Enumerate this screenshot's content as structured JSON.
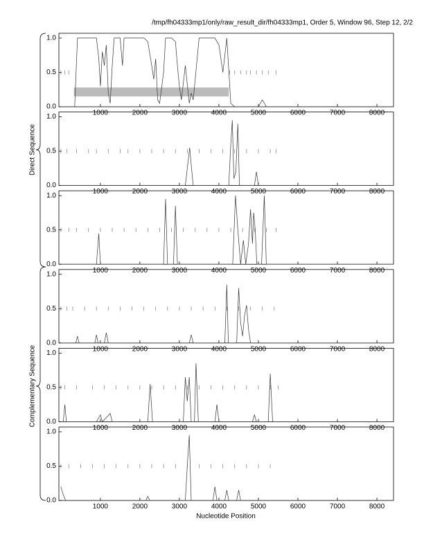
{
  "title": "/tmp/fh04333mp1/only/raw_result_dir/fh04333mp1, Order 5, Window 96, Step 12, 2/2",
  "x_label": "Nucleotide Position",
  "groups": [
    "Direct Sequence",
    "Complementary Sequence"
  ],
  "chart_data": [
    {
      "type": "line",
      "color": "#333333",
      "xlim": [
        -50,
        8420
      ],
      "ylim": [
        0,
        1.07
      ],
      "xticks": [
        1000,
        2000,
        3000,
        4000,
        5000,
        6000,
        7000,
        8000
      ],
      "yticks": [
        {
          "value": 0,
          "label": "0.0"
        },
        0.5,
        {
          "value": 1,
          "label": "1.0"
        }
      ],
      "regions": [
        {
          "start": 330,
          "end": 4250
        }
      ],
      "stops": [
        0,
        100,
        200,
        4270,
        4400,
        4550,
        4700,
        4800,
        4950,
        5100,
        5250,
        5450
      ],
      "x": [
        0,
        350,
        420,
        500,
        900,
        960,
        1000,
        1050,
        1100,
        1150,
        1200,
        1250,
        1300,
        1350,
        1500,
        1560,
        1600,
        1650,
        2100,
        2200,
        2300,
        2350,
        2400,
        2450,
        2500,
        2600,
        2650,
        2700,
        2800,
        2900,
        2950,
        3000,
        3050,
        3150,
        3250,
        3300,
        3350,
        3500,
        3600,
        3700,
        3900,
        4000,
        4100,
        4200,
        4300,
        4400,
        5000,
        5100,
        5200,
        8420
      ],
      "values": [
        0,
        0,
        1,
        1,
        1,
        0.7,
        0.3,
        0.8,
        0.6,
        0.9,
        0.2,
        0.05,
        0.6,
        1,
        1,
        0.6,
        1,
        1,
        1,
        0.95,
        0.6,
        0.4,
        0.7,
        0.1,
        0.05,
        0.5,
        1,
        1,
        1,
        0.95,
        0.6,
        0.3,
        0.1,
        0.6,
        0.05,
        0.2,
        0.1,
        1,
        1,
        1,
        1,
        0.9,
        0.5,
        1,
        0.05,
        0,
        0,
        0.1,
        0,
        0
      ]
    },
    {
      "type": "line",
      "color": "#333333",
      "xlim": [
        -50,
        8420
      ],
      "ylim": [
        0,
        1.07
      ],
      "xticks": [
        1000,
        2000,
        3000,
        4000,
        5000,
        6000,
        7000,
        8000
      ],
      "yticks": [
        {
          "value": 0,
          "label": "0.0"
        },
        0.5,
        {
          "value": 1,
          "label": "1.0"
        }
      ],
      "stops": [
        0,
        150,
        400,
        700,
        900,
        1200,
        1500,
        1700,
        2000,
        2300,
        2600,
        2900,
        3200,
        3500,
        3800,
        4100,
        4400,
        4700,
        5000,
        5300,
        5450
      ],
      "x": [
        0,
        3150,
        3220,
        3260,
        3300,
        3350,
        4250,
        4300,
        4340,
        4380,
        4430,
        4480,
        4520,
        4900,
        4950,
        5000,
        8420
      ],
      "values": [
        0,
        0,
        0.35,
        0.55,
        0.3,
        0,
        0,
        0.6,
        0.95,
        0.1,
        0.2,
        0.9,
        0,
        0,
        0.2,
        0,
        0
      ]
    },
    {
      "type": "line",
      "color": "#333333",
      "xlim": [
        -50,
        8420
      ],
      "ylim": [
        0,
        1.07
      ],
      "xticks": [
        1000,
        2000,
        3000,
        4000,
        5000,
        6000,
        7000,
        8000
      ],
      "yticks": [
        {
          "value": 0,
          "label": "0.0"
        },
        0.5,
        {
          "value": 1,
          "label": "1.0"
        }
      ],
      "stops": [
        0,
        200,
        400,
        700,
        1000,
        1300,
        1600,
        1900,
        2200,
        2500,
        2800,
        3100,
        3400,
        3700,
        4000,
        4300,
        4600,
        4900,
        5200,
        5450
      ],
      "x": [
        0,
        900,
        960,
        1000,
        2600,
        2650,
        2700,
        2850,
        2900,
        2950,
        4350,
        4420,
        4480,
        4550,
        4620,
        4680,
        4750,
        4800,
        4850,
        4880,
        4920,
        4960,
        5080,
        5150,
        5200,
        8420
      ],
      "values": [
        0,
        0,
        0.45,
        0,
        0,
        0.95,
        0,
        0,
        0.85,
        0,
        0,
        1,
        0.5,
        0,
        0.35,
        0,
        0.3,
        0.8,
        0.3,
        0.75,
        0.5,
        0,
        0,
        1,
        0,
        0
      ]
    },
    {
      "type": "line",
      "color": "#333333",
      "xlim": [
        -50,
        8420
      ],
      "ylim": [
        0,
        1.07
      ],
      "xticks": [
        1000,
        2000,
        3000,
        4000,
        5000,
        6000,
        7000,
        8000
      ],
      "yticks": [
        {
          "value": 0,
          "label": "0.0"
        },
        0.5,
        {
          "value": 1,
          "label": "1.0"
        }
      ],
      "stops": [
        0,
        150,
        300,
        600,
        900,
        1200,
        1500,
        1800,
        2100,
        2400,
        2700,
        3000,
        3300,
        3600,
        3900,
        4200,
        4500,
        4800,
        5100,
        5400
      ],
      "x": [
        0,
        380,
        420,
        460,
        860,
        900,
        940,
        1100,
        1150,
        1200,
        3250,
        3300,
        3350,
        4150,
        4200,
        4240,
        4450,
        4500,
        4550,
        4600,
        4650,
        4700,
        4750,
        4800,
        8420
      ],
      "values": [
        0,
        0,
        0.1,
        0,
        0,
        0.12,
        0,
        0,
        0.15,
        0,
        0,
        0.12,
        0,
        0,
        0.85,
        0,
        0,
        0.8,
        0.3,
        0.1,
        0.4,
        0.55,
        0.2,
        0,
        0
      ]
    },
    {
      "type": "line",
      "color": "#333333",
      "xlim": [
        -50,
        8420
      ],
      "ylim": [
        0,
        1.07
      ],
      "xticks": [
        1000,
        2000,
        3000,
        4000,
        5000,
        6000,
        7000,
        8000
      ],
      "yticks": [
        {
          "value": 0,
          "label": "0.0"
        },
        0.5,
        {
          "value": 1,
          "label": "1.0"
        }
      ],
      "stops": [
        0,
        100,
        400,
        800,
        1100,
        1400,
        1700,
        2000,
        2300,
        2600,
        2900,
        3200,
        3500,
        3800,
        4100,
        4400,
        4700,
        5000,
        5300,
        5500
      ],
      "x": [
        0,
        60,
        100,
        140,
        900,
        1000,
        1050,
        1250,
        1300,
        2200,
        2260,
        2320,
        3100,
        3150,
        3200,
        3250,
        3300,
        3380,
        3420,
        3480,
        3900,
        3950,
        4000,
        4850,
        4900,
        4950,
        5250,
        5300,
        5360,
        8420
      ],
      "values": [
        0,
        0,
        0.25,
        0,
        0,
        0.1,
        0,
        0.12,
        0,
        0,
        0.55,
        0,
        0,
        0.65,
        0.3,
        0.65,
        0,
        0,
        0.85,
        0,
        0,
        0.25,
        0,
        0,
        0.1,
        0,
        0,
        0.7,
        0,
        0
      ]
    },
    {
      "type": "line",
      "color": "#333333",
      "xlim": [
        -50,
        8420
      ],
      "ylim": [
        0,
        1.07
      ],
      "xticks": [
        1000,
        2000,
        3000,
        4000,
        5000,
        6000,
        7000,
        8000
      ],
      "yticks": [
        {
          "value": 0,
          "label": "0.0"
        },
        0.5,
        {
          "value": 1,
          "label": "1.0"
        }
      ],
      "stops": [
        0,
        200,
        500,
        800,
        1100,
        1400,
        1700,
        2000,
        2300,
        2600,
        2900,
        3200,
        3500,
        3800,
        4100,
        4400,
        4700,
        5000,
        5300
      ],
      "x": [
        0,
        50,
        120,
        2150,
        2200,
        2250,
        3150,
        3200,
        3250,
        3300,
        3850,
        3900,
        3950,
        4150,
        4200,
        4250,
        4450,
        4500,
        4550,
        8420
      ],
      "values": [
        0.2,
        0.1,
        0,
        0,
        0.06,
        0,
        0,
        0.5,
        0.95,
        0,
        0,
        0.2,
        0,
        0,
        0.15,
        0,
        0,
        0.15,
        0,
        0
      ]
    }
  ]
}
